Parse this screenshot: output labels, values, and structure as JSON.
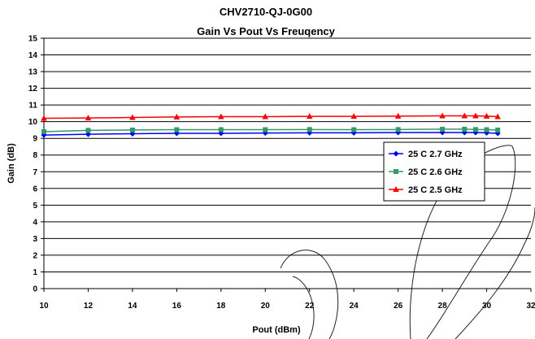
{
  "chart_data": {
    "type": "line",
    "title": "CHV2710-QJ-0G00",
    "subtitle": "Gain Vs Pout Vs Freuqency",
    "xlabel": "Pout (dBm)",
    "ylabel": "Gain (dB)",
    "xlim": [
      10,
      32
    ],
    "ylim": [
      0,
      15
    ],
    "x_ticks": [
      "10",
      "12",
      "14",
      "16",
      "18",
      "20",
      "22",
      "24",
      "26",
      "28",
      "30",
      "32"
    ],
    "y_ticks": [
      "0",
      "1",
      "2",
      "3",
      "4",
      "5",
      "6",
      "7",
      "8",
      "9",
      "10",
      "11",
      "12",
      "13",
      "14",
      "15"
    ],
    "grid": "horizontal",
    "legend_position": "right",
    "x": [
      10,
      12,
      14,
      16,
      18,
      20,
      22,
      24,
      26,
      28,
      29,
      29.5,
      30,
      30.5
    ],
    "series": [
      {
        "name": "25 C 2.7 GHz",
        "color": "#0000ff",
        "marker": "diamond",
        "values": [
          9.2,
          9.25,
          9.28,
          9.3,
          9.3,
          9.32,
          9.33,
          9.33,
          9.35,
          9.35,
          9.35,
          9.35,
          9.33,
          9.3
        ]
      },
      {
        "name": "25 C 2.6 GHz",
        "color": "#339966",
        "marker": "square",
        "values": [
          9.4,
          9.48,
          9.5,
          9.52,
          9.52,
          9.52,
          9.53,
          9.52,
          9.53,
          9.55,
          9.55,
          9.53,
          9.52,
          9.5
        ]
      },
      {
        "name": "25 C 2.5 GHz",
        "color": "#ff0000",
        "marker": "triangle",
        "values": [
          10.2,
          10.22,
          10.25,
          10.28,
          10.3,
          10.3,
          10.32,
          10.32,
          10.33,
          10.35,
          10.35,
          10.35,
          10.33,
          10.3
        ]
      }
    ]
  }
}
